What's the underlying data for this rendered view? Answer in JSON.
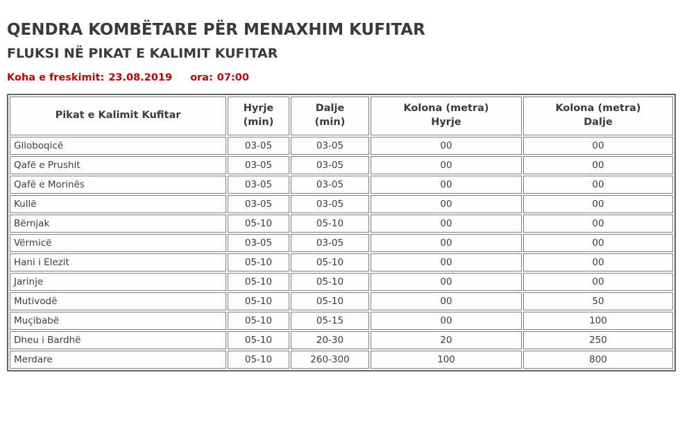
{
  "page": {
    "title": "QENDRA KOMBËTARE PËR MENAXHIM KUFITAR",
    "subtitle": "FLUKSI NË PIKAT E KALIMIT KUFITAR",
    "refresh_label": "Koha e freskimit:",
    "refresh_date": "23.08.2019",
    "time_label": "ora:",
    "time_value": "07:00"
  },
  "colors": {
    "heading_text": "#3a3a3a",
    "refresh_text": "#c00000",
    "outer_border": "#636363",
    "cell_border": "#7d7d7d",
    "cell_text": "#3c3c3c",
    "background": "#ffffff"
  },
  "table": {
    "columns": [
      {
        "line1": "Pikat e Kalimit Kufitar",
        "line2": ""
      },
      {
        "line1": "Hyrje",
        "line2": "(min)"
      },
      {
        "line1": "Dalje",
        "line2": "(min)"
      },
      {
        "line1": "Kolona (metra)",
        "line2": "Hyrje"
      },
      {
        "line1": "Kolona (metra)",
        "line2": "Dalje"
      }
    ],
    "rows": [
      {
        "name": "Glloboqicë",
        "hyrje_min": "03-05",
        "dalje_min": "03-05",
        "kolona_hyrje": "00",
        "kolona_dalje": "00"
      },
      {
        "name": "Qafë e Prushit",
        "hyrje_min": "03-05",
        "dalje_min": "03-05",
        "kolona_hyrje": "00",
        "kolona_dalje": "00"
      },
      {
        "name": "Qafë e Morinës",
        "hyrje_min": "03-05",
        "dalje_min": "03-05",
        "kolona_hyrje": "00",
        "kolona_dalje": "00"
      },
      {
        "name": "Kullë",
        "hyrje_min": "03-05",
        "dalje_min": "03-05",
        "kolona_hyrje": "00",
        "kolona_dalje": "00"
      },
      {
        "name": "Bërnjak",
        "hyrje_min": "05-10",
        "dalje_min": "05-10",
        "kolona_hyrje": "00",
        "kolona_dalje": "00"
      },
      {
        "name": "Vërmicë",
        "hyrje_min": "03-05",
        "dalje_min": "03-05",
        "kolona_hyrje": "00",
        "kolona_dalje": "00"
      },
      {
        "name": "Hani i Elezit",
        "hyrje_min": "05-10",
        "dalje_min": "05-10",
        "kolona_hyrje": "00",
        "kolona_dalje": "00"
      },
      {
        "name": "Jarinje",
        "hyrje_min": "05-10",
        "dalje_min": "05-10",
        "kolona_hyrje": "00",
        "kolona_dalje": "00"
      },
      {
        "name": "Mutivodë",
        "hyrje_min": "05-10",
        "dalje_min": "05-10",
        "kolona_hyrje": "00",
        "kolona_dalje": "50"
      },
      {
        "name": "Muçibabë",
        "hyrje_min": "05-10",
        "dalje_min": "05-15",
        "kolona_hyrje": "00",
        "kolona_dalje": "100"
      },
      {
        "name": "Dheu i Bardhë",
        "hyrje_min": "05-10",
        "dalje_min": "20-30",
        "kolona_hyrje": "20",
        "kolona_dalje": "250"
      },
      {
        "name": "Merdare",
        "hyrje_min": "05-10",
        "dalje_min": "260-300",
        "kolona_hyrje": "100",
        "kolona_dalje": "800"
      }
    ]
  }
}
